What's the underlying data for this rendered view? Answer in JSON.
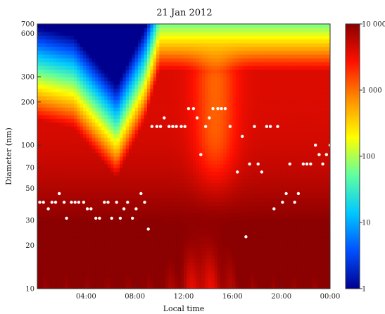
{
  "chart_data": {
    "type": "heatmap",
    "title": "21 Jan 2012",
    "xlabel": "Local time",
    "ylabel": "Diameter (nm)",
    "x_range_hours": [
      0,
      24
    ],
    "x_ticks": [
      {
        "h": 4,
        "label": "04:00"
      },
      {
        "h": 8,
        "label": "08:00"
      },
      {
        "h": 12,
        "label": "12:00"
      },
      {
        "h": 16,
        "label": "16:00"
      },
      {
        "h": 20,
        "label": "20:00"
      },
      {
        "h": 24,
        "label": "00:00"
      }
    ],
    "y_scale": "log",
    "y_range": [
      10,
      700
    ],
    "y_ticks": [
      10,
      20,
      30,
      50,
      70,
      100,
      200,
      300,
      600,
      700
    ],
    "colorbar": {
      "scale": "log",
      "range": [
        1,
        10000
      ],
      "ticks": [
        {
          "v": 1,
          "label": "1"
        },
        {
          "v": 10,
          "label": "10"
        },
        {
          "v": 100,
          "label": "100"
        },
        {
          "v": 1000,
          "label": "1 000"
        },
        {
          "v": 10000,
          "label": "10 000"
        }
      ],
      "colors": [
        "#00008f",
        "#0050ff",
        "#00c8ff",
        "#60ffa0",
        "#ffff00",
        "#ff9000",
        "#ff1000",
        "#8b0000"
      ]
    },
    "mode_diameter_series": {
      "marker": "white circle",
      "points": [
        [
          0.2,
          40
        ],
        [
          0.5,
          40
        ],
        [
          0.9,
          36
        ],
        [
          1.2,
          40
        ],
        [
          1.5,
          40
        ],
        [
          1.8,
          46
        ],
        [
          2.2,
          40
        ],
        [
          2.4,
          31
        ],
        [
          2.8,
          40
        ],
        [
          3.1,
          40
        ],
        [
          3.4,
          40
        ],
        [
          3.8,
          40
        ],
        [
          4.1,
          36
        ],
        [
          4.4,
          36
        ],
        [
          4.8,
          31
        ],
        [
          5.1,
          31
        ],
        [
          5.5,
          40
        ],
        [
          5.8,
          40
        ],
        [
          6.1,
          31
        ],
        [
          6.5,
          40
        ],
        [
          6.8,
          31
        ],
        [
          7.1,
          36
        ],
        [
          7.4,
          40
        ],
        [
          7.8,
          31
        ],
        [
          8.1,
          36
        ],
        [
          8.5,
          46
        ],
        [
          8.8,
          40
        ],
        [
          9.1,
          26
        ],
        [
          9.4,
          135
        ],
        [
          9.8,
          135
        ],
        [
          10.1,
          135
        ],
        [
          10.4,
          155
        ],
        [
          10.8,
          135
        ],
        [
          11.1,
          135
        ],
        [
          11.4,
          135
        ],
        [
          11.8,
          135
        ],
        [
          12.1,
          135
        ],
        [
          12.4,
          180
        ],
        [
          12.8,
          180
        ],
        [
          13.1,
          155
        ],
        [
          13.4,
          86
        ],
        [
          13.8,
          135
        ],
        [
          14.1,
          155
        ],
        [
          14.4,
          180
        ],
        [
          14.8,
          180
        ],
        [
          15.1,
          180
        ],
        [
          15.4,
          180
        ],
        [
          15.8,
          135
        ],
        [
          16.4,
          65
        ],
        [
          16.8,
          115
        ],
        [
          17.1,
          23
        ],
        [
          17.4,
          74
        ],
        [
          17.8,
          135
        ],
        [
          18.1,
          74
        ],
        [
          18.4,
          65
        ],
        [
          18.8,
          135
        ],
        [
          19.1,
          135
        ],
        [
          19.4,
          36
        ],
        [
          19.7,
          135
        ],
        [
          20.1,
          40
        ],
        [
          20.4,
          46
        ],
        [
          20.7,
          74
        ],
        [
          21.1,
          40
        ],
        [
          21.4,
          46
        ],
        [
          21.8,
          74
        ],
        [
          22.1,
          74
        ],
        [
          22.4,
          74
        ],
        [
          22.8,
          100
        ],
        [
          23.1,
          86
        ],
        [
          23.4,
          74
        ],
        [
          23.7,
          86
        ],
        [
          24.0,
          100
        ]
      ]
    }
  }
}
